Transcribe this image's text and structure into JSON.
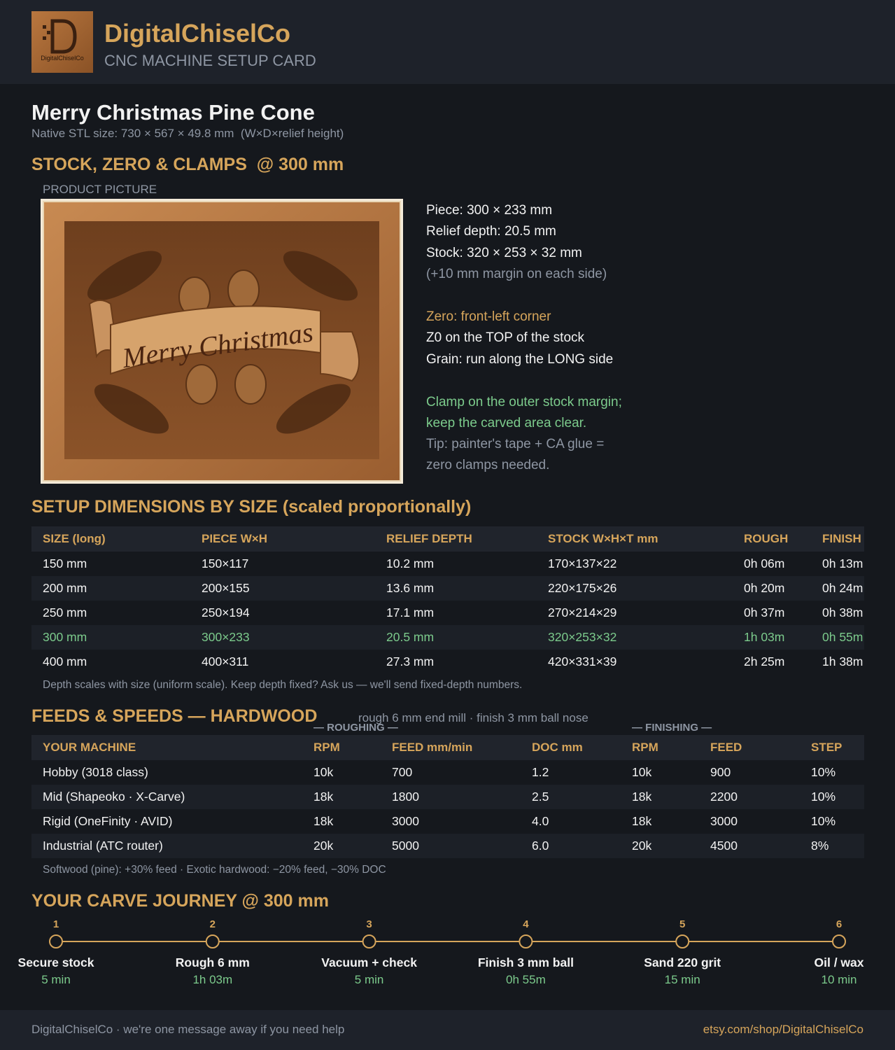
{
  "header": {
    "logo_text": "DigitalChiselCo",
    "title": "DigitalChiselCo",
    "subtitle": "CNC MACHINE SETUP CARD"
  },
  "product": {
    "name": "Merry Christmas Pine Cone",
    "native_size": "Native STL size: 730 × 567 × 49.8 mm  (W×D×relief height)"
  },
  "stock": {
    "heading": "STOCK, ZERO & CLAMPS  @ 300 mm",
    "picture_label": "PRODUCT PICTURE",
    "picture_text": "Merry Christmas",
    "specs": [
      "Piece: 300 × 233 mm",
      "Relief depth: 20.5 mm",
      "Stock: 320 × 253 × 32 mm",
      "(+10 mm margin on each side)"
    ],
    "zero": [
      "Zero: front-left corner",
      "Z0 on the TOP of the stock",
      "Grain: run along the LONG side"
    ],
    "clamp": [
      "Clamp on the outer stock margin;",
      "keep the carved area clear.",
      "Tip: painter's tape + CA glue =",
      "zero clamps needed."
    ]
  },
  "dimensions": {
    "heading": "SETUP DIMENSIONS BY SIZE (scaled proportionally)",
    "columns": [
      "SIZE (long)",
      "PIECE W×H",
      "RELIEF DEPTH",
      "STOCK W×H×T mm",
      "ROUGH",
      "FINISH"
    ],
    "rows": [
      [
        "150 mm",
        "150×117",
        "10.2 mm",
        "170×137×22",
        "0h 06m",
        "0h 13m"
      ],
      [
        "200 mm",
        "200×155",
        "13.6 mm",
        "220×175×26",
        "0h 20m",
        "0h 24m"
      ],
      [
        "250 mm",
        "250×194",
        "17.1 mm",
        "270×214×29",
        "0h 37m",
        "0h 38m"
      ],
      [
        "300 mm",
        "300×233",
        "20.5 mm",
        "320×253×32",
        "1h 03m",
        "0h 55m"
      ],
      [
        "400 mm",
        "400×311",
        "27.3 mm",
        "420×331×39",
        "2h 25m",
        "1h 38m"
      ]
    ],
    "note": "Depth scales with size (uniform scale). Keep depth fixed? Ask us — we'll send fixed-depth numbers."
  },
  "feeds": {
    "heading": "FEEDS & SPEEDS — HARDWOOD",
    "subtitle": "rough 6 mm end mill · finish 3 mm ball nose",
    "group_roughing": "— ROUGHING —",
    "group_finishing": "— FINISHING —",
    "columns": [
      "YOUR MACHINE",
      "RPM",
      "FEED mm/min",
      "DOC mm",
      "RPM",
      "FEED",
      "STEP"
    ],
    "rows": [
      [
        "Hobby (3018 class)",
        "10k",
        "700",
        "1.2",
        "10k",
        "900",
        "10%"
      ],
      [
        "Mid (Shapeoko · X-Carve)",
        "18k",
        "1800",
        "2.5",
        "18k",
        "2200",
        "10%"
      ],
      [
        "Rigid (OneFinity · AVID)",
        "18k",
        "3000",
        "4.0",
        "18k",
        "3000",
        "10%"
      ],
      [
        "Industrial (ATC router)",
        "20k",
        "5000",
        "6.0",
        "20k",
        "4500",
        "8%"
      ]
    ],
    "note": "Softwood (pine): +30% feed · Exotic hardwood: −20% feed, −30% DOC"
  },
  "journey": {
    "heading": "YOUR CARVE JOURNEY @ 300 mm",
    "steps": [
      {
        "number": 1,
        "label": "Secure stock",
        "time": "5 min"
      },
      {
        "number": 2,
        "label": "Rough 6 mm",
        "time": "1h 03m"
      },
      {
        "number": 3,
        "label": "Vacuum + check",
        "time": "5 min"
      },
      {
        "number": 4,
        "label": "Finish 3 mm ball",
        "time": "0h 55m"
      },
      {
        "number": 5,
        "label": "Sand 220 grit",
        "time": "15 min"
      },
      {
        "number": 6,
        "label": "Oil / wax",
        "time": "10 min"
      }
    ]
  },
  "footer": {
    "left": "DigitalChiselCo · we're one message away if you need help",
    "right": "etsy.com/shop/DigitalChiselCo"
  }
}
